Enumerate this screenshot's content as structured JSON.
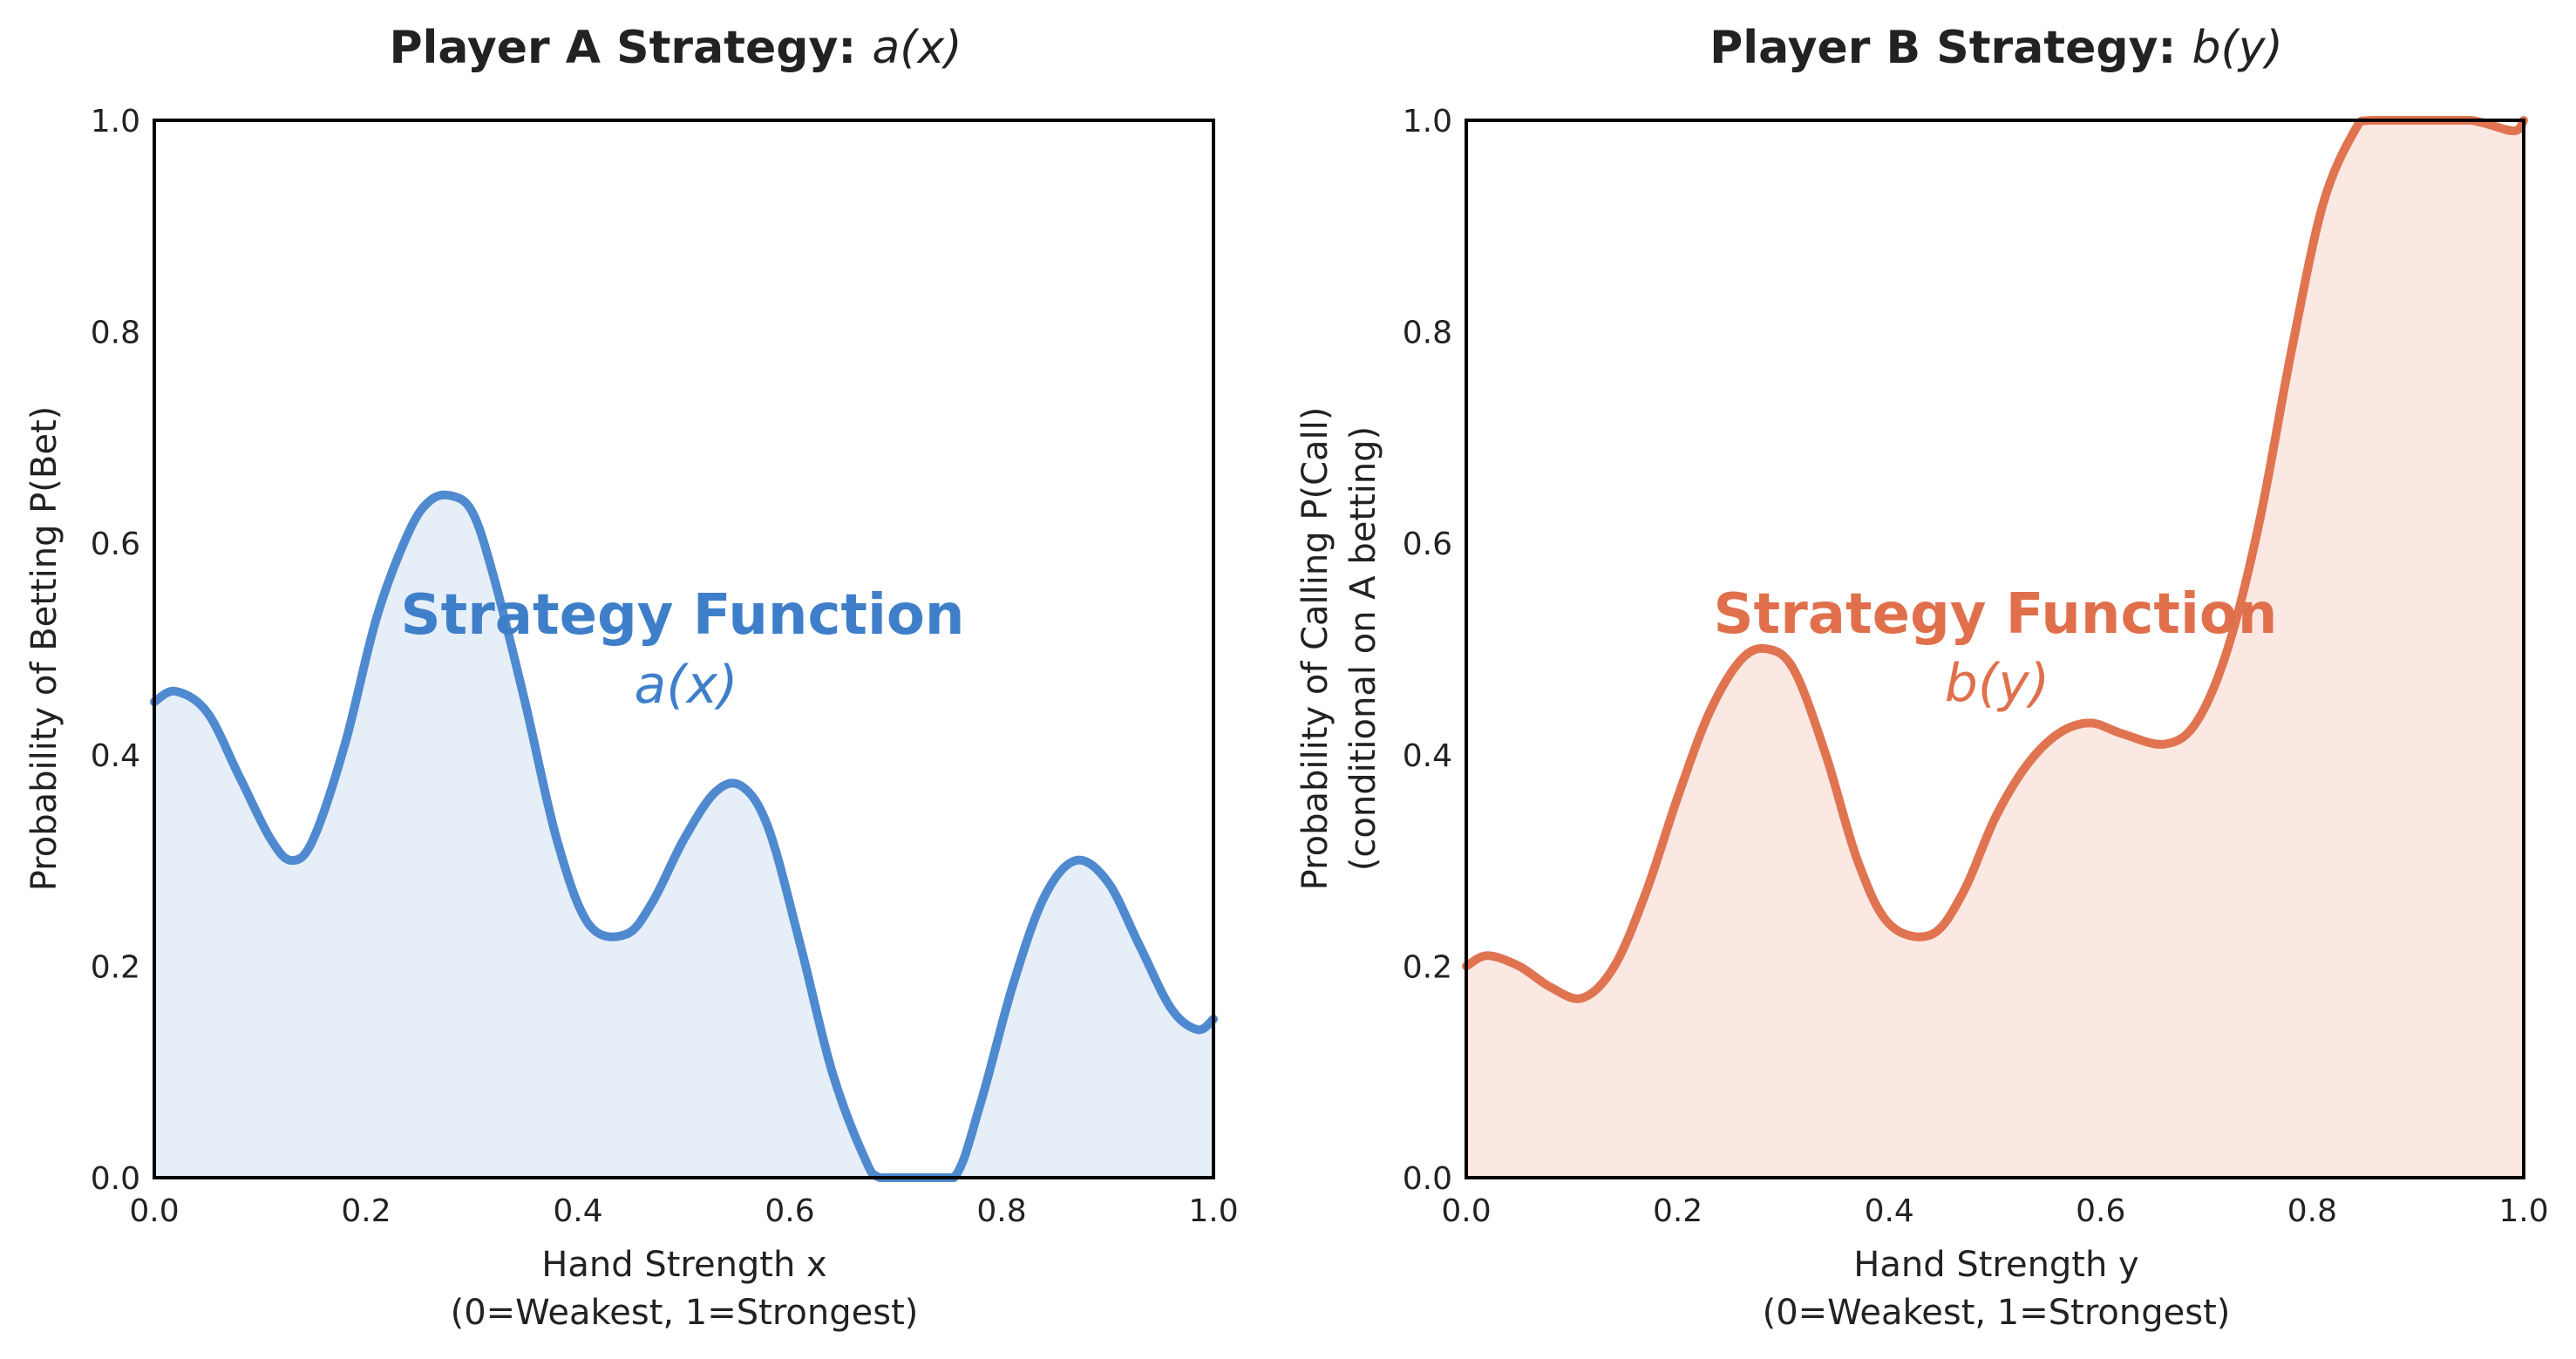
{
  "chart_data": [
    {
      "type": "area",
      "title_bold": "Player A Strategy:",
      "title_var": "a(x)",
      "xlabel_line1": "Hand Strength x",
      "xlabel_line2": "(0=Weakest, 1=Strongest)",
      "ylabel_line1": "Probability of Betting P(Bet)",
      "ylabel_line2": "",
      "annotation_main": "Strategy Function",
      "annotation_sub": "a(x)",
      "xlim": [
        0,
        1
      ],
      "ylim": [
        0,
        1
      ],
      "xticks": [
        "0.0",
        "0.2",
        "0.4",
        "0.6",
        "0.8",
        "1.0"
      ],
      "yticks": [
        "0.0",
        "0.2",
        "0.4",
        "0.6",
        "0.8",
        "1.0"
      ],
      "grid": false,
      "line_color": "#4f8ad0",
      "fill_color": "#e6eef8",
      "annotation_color": "#3f7fca",
      "x": [
        0.0,
        0.02,
        0.05,
        0.08,
        0.11,
        0.13,
        0.15,
        0.18,
        0.21,
        0.24,
        0.26,
        0.28,
        0.3,
        0.32,
        0.35,
        0.38,
        0.41,
        0.445,
        0.47,
        0.5,
        0.53,
        0.555,
        0.58,
        0.61,
        0.64,
        0.67,
        0.685,
        0.72,
        0.755,
        0.78,
        0.81,
        0.84,
        0.87,
        0.9,
        0.93,
        0.96,
        0.985,
        1.0
      ],
      "y": [
        0.45,
        0.46,
        0.44,
        0.38,
        0.32,
        0.3,
        0.32,
        0.41,
        0.53,
        0.61,
        0.64,
        0.645,
        0.63,
        0.57,
        0.45,
        0.32,
        0.24,
        0.23,
        0.26,
        0.32,
        0.365,
        0.37,
        0.33,
        0.22,
        0.1,
        0.02,
        0.0,
        0.0,
        0.0,
        0.07,
        0.18,
        0.265,
        0.3,
        0.28,
        0.22,
        0.16,
        0.14,
        0.15
      ]
    },
    {
      "type": "area",
      "title_bold": "Player B Strategy:",
      "title_var": "b(y)",
      "xlabel_line1": "Hand Strength y",
      "xlabel_line2": "(0=Weakest, 1=Strongest)",
      "ylabel_line1": "Probability of Calling P(Call)",
      "ylabel_line2": "(conditional on A betting)",
      "annotation_main": "Strategy Function",
      "annotation_sub": "b(y)",
      "xlim": [
        0,
        1
      ],
      "ylim": [
        0,
        1
      ],
      "xticks": [
        "0.0",
        "0.2",
        "0.4",
        "0.6",
        "0.8",
        "1.0"
      ],
      "yticks": [
        "0.0",
        "0.2",
        "0.4",
        "0.6",
        "0.8",
        "1.0"
      ],
      "grid": false,
      "line_color": "#e07450",
      "fill_color": "#fbe8e2",
      "annotation_color": "#e0704c",
      "x": [
        0.0,
        0.02,
        0.05,
        0.08,
        0.11,
        0.14,
        0.17,
        0.2,
        0.23,
        0.26,
        0.285,
        0.31,
        0.34,
        0.37,
        0.4,
        0.44,
        0.47,
        0.5,
        0.53,
        0.56,
        0.59,
        0.62,
        0.66,
        0.69,
        0.72,
        0.75,
        0.78,
        0.81,
        0.84,
        0.855,
        0.9,
        0.95,
        0.99,
        1.0
      ],
      "y": [
        0.2,
        0.21,
        0.2,
        0.18,
        0.17,
        0.2,
        0.27,
        0.36,
        0.44,
        0.49,
        0.5,
        0.48,
        0.4,
        0.3,
        0.24,
        0.23,
        0.27,
        0.34,
        0.39,
        0.42,
        0.43,
        0.42,
        0.41,
        0.43,
        0.5,
        0.62,
        0.78,
        0.92,
        0.99,
        1.0,
        1.0,
        1.0,
        0.99,
        1.0
      ]
    }
  ]
}
